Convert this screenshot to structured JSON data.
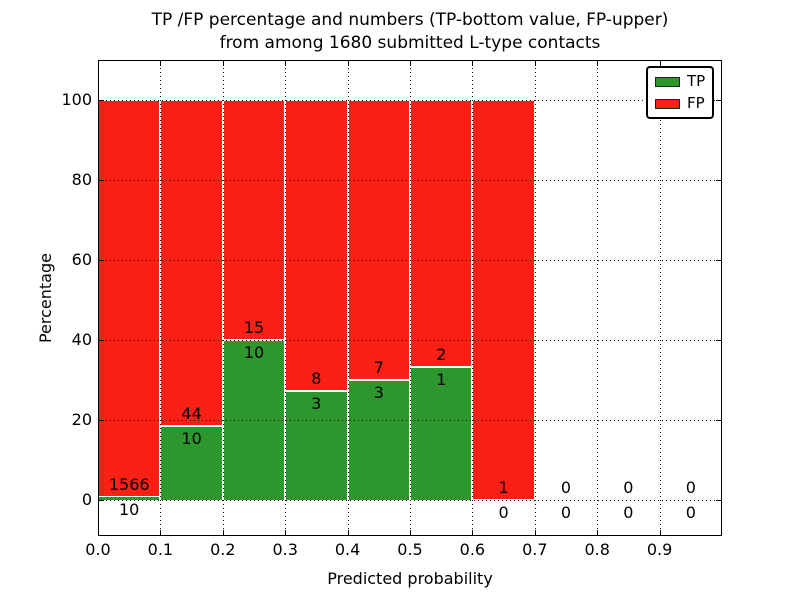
{
  "figure": {
    "title_line1": "TP /FP percentage and numbers (TP-bottom value, FP-upper)",
    "title_line2": "from among 1680 submitted L-type contacts"
  },
  "chart_data": {
    "type": "bar",
    "stacked": true,
    "title": "TP /FP percentage and numbers (TP-bottom value, FP-upper)\nfrom among 1680 submitted L-type contacts",
    "xlabel": "Predicted probability",
    "ylabel": "Percentage",
    "total_submitted": 1680,
    "contact_type": "L-type",
    "bin_edges": [
      0.0,
      0.1,
      0.2,
      0.3,
      0.4,
      0.5,
      0.6,
      0.7,
      0.8,
      0.9,
      1.0
    ],
    "series": [
      {
        "name": "TP",
        "color": "#2d962d",
        "counts": [
          10,
          10,
          10,
          3,
          3,
          1,
          0,
          0,
          0,
          0
        ],
        "pct": [
          0.63,
          18.52,
          40.0,
          27.27,
          30.0,
          33.33,
          0.0,
          0.0,
          0.0,
          0.0
        ]
      },
      {
        "name": "FP",
        "color": "#fb2016",
        "counts": [
          1566,
          44,
          15,
          8,
          7,
          2,
          1,
          0,
          0,
          0
        ],
        "pct": [
          99.37,
          81.48,
          60.0,
          72.73,
          70.0,
          66.67,
          100.0,
          0.0,
          0.0,
          0.0
        ]
      }
    ],
    "xticks": [
      0.0,
      0.1,
      0.2,
      0.3,
      0.4,
      0.5,
      0.6,
      0.7,
      0.8,
      0.9
    ],
    "xtick_labels": [
      "0.0",
      "0.1",
      "0.2",
      "0.3",
      "0.4",
      "0.5",
      "0.6",
      "0.7",
      "0.8",
      "0.9"
    ],
    "yticks": [
      0,
      20,
      40,
      60,
      80,
      100
    ],
    "ytick_labels": [
      "0",
      "20",
      "40",
      "60",
      "80",
      "100"
    ],
    "xlim": [
      0.0,
      1.0
    ],
    "ylim": [
      -9,
      110
    ],
    "grid": {
      "linestyle": "dotted",
      "color": "#000000",
      "on": true
    },
    "bar_edge_color": "#ffffff",
    "legend": {
      "position": "upper right",
      "entries": [
        {
          "label": "TP",
          "color": "#2d962d"
        },
        {
          "label": "FP",
          "color": "#fb2016"
        }
      ]
    }
  }
}
